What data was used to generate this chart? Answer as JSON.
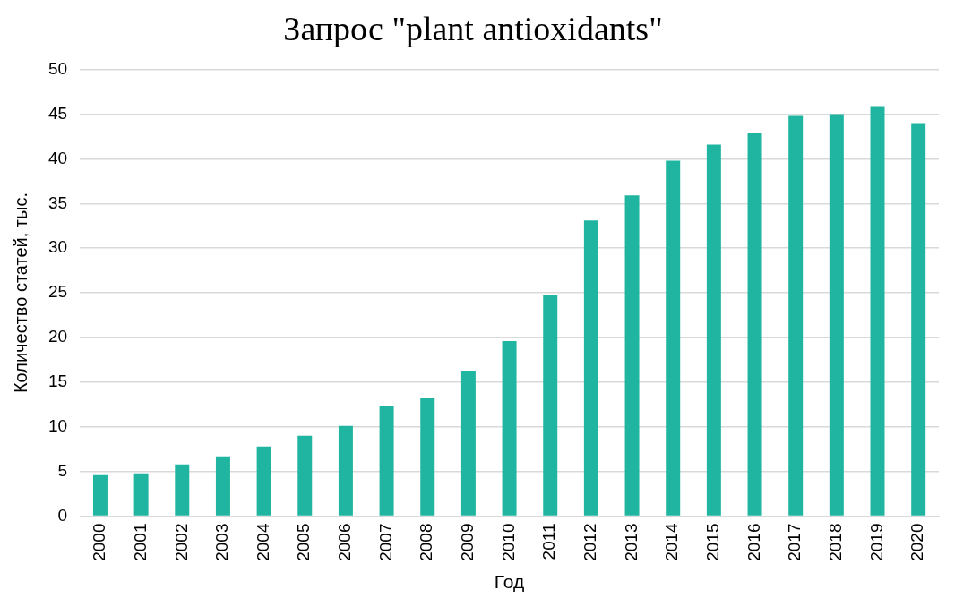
{
  "chart_data": {
    "type": "bar",
    "title": "Запрос \"plant antioxidants\"",
    "xlabel": "Год",
    "ylabel": "Количество статей, тыс.",
    "categories": [
      "2000",
      "2001",
      "2002",
      "2003",
      "2004",
      "2005",
      "2006",
      "2007",
      "2008",
      "2009",
      "2010",
      "2011",
      "2012",
      "2013",
      "2014",
      "2015",
      "2016",
      "2017",
      "2018",
      "2019",
      "2020"
    ],
    "values": [
      4.6,
      4.8,
      5.8,
      6.7,
      7.8,
      9.0,
      10.1,
      12.3,
      13.2,
      16.3,
      19.6,
      24.7,
      33.1,
      35.9,
      39.8,
      41.6,
      42.9,
      44.8,
      45.0,
      45.9,
      44.0
    ],
    "color": "#1fb5a0",
    "ylim": [
      0,
      50
    ],
    "yticks": [
      0,
      5,
      10,
      15,
      20,
      25,
      30,
      35,
      40,
      45,
      50
    ],
    "grid": "y",
    "legend": false
  }
}
